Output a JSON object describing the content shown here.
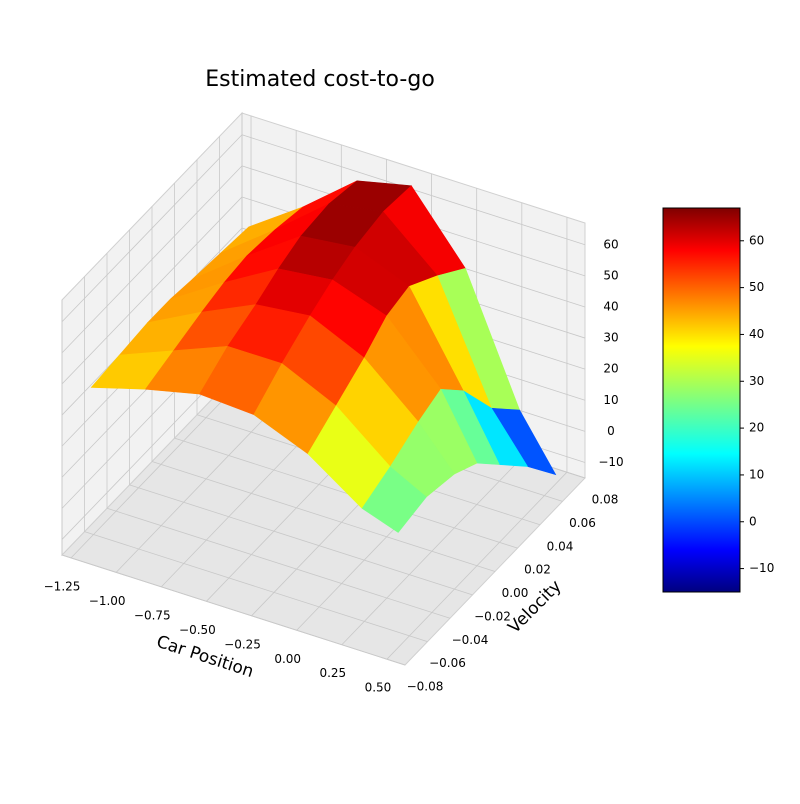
{
  "chart_data": {
    "type": "surface",
    "title": "Estimated cost-to-go",
    "xlabel": "Car Position",
    "ylabel": "Velocity",
    "colormap": "jet",
    "clim": [
      -15,
      67
    ],
    "xlim": [
      -1.3,
      0.6
    ],
    "ylim": [
      -0.08,
      0.08
    ],
    "zlim": [
      -15,
      67
    ],
    "grid": true,
    "xticks": [
      {
        "value": -1.25,
        "label": "−1.25"
      },
      {
        "value": -1,
        "label": "−1.00"
      },
      {
        "value": -0.75,
        "label": "−0.75"
      },
      {
        "value": -0.5,
        "label": "−0.50"
      },
      {
        "value": -0.25,
        "label": "−0.25"
      },
      {
        "value": 0,
        "label": "0.00"
      },
      0.25,
      {
        "value": 0.5,
        "label": "0.50"
      }
    ],
    "yticks": [
      {
        "value": -0.08,
        "label": "−0.08"
      },
      {
        "value": -0.06,
        "label": "−0.06"
      },
      {
        "value": -0.04,
        "label": "−0.04"
      },
      {
        "value": -0.02,
        "label": "−0.02"
      },
      {
        "value": 0,
        "label": "0.00"
      },
      0.02,
      0.04,
      0.06,
      0.08
    ],
    "zticks": [
      {
        "value": -10,
        "label": "−10"
      },
      0,
      10,
      20,
      30,
      40,
      50,
      60
    ],
    "colorbar_ticks": [
      {
        "value": -10,
        "label": "−10"
      },
      0,
      10,
      20,
      30,
      40,
      50,
      60
    ],
    "x": [
      -1.2,
      -0.9,
      -0.6,
      -0.3,
      0,
      0.3,
      0.5
    ],
    "y": [
      -0.07,
      -0.045,
      -0.02,
      0,
      0.02,
      0.045,
      0.07
    ],
    "z": [
      [
        37,
        42,
        46,
        45,
        38,
        26,
        22
      ],
      [
        38,
        45,
        52,
        52,
        44,
        30,
        24
      ],
      [
        39,
        48,
        56,
        58,
        50,
        35,
        22
      ],
      [
        39,
        50,
        60,
        62,
        56,
        38,
        18
      ],
      [
        38,
        51,
        63,
        65,
        58,
        30,
        10
      ],
      [
        37,
        50,
        64,
        67,
        52,
        15,
        0
      ],
      [
        36,
        48,
        62,
        66,
        45,
        5,
        -12
      ]
    ]
  }
}
